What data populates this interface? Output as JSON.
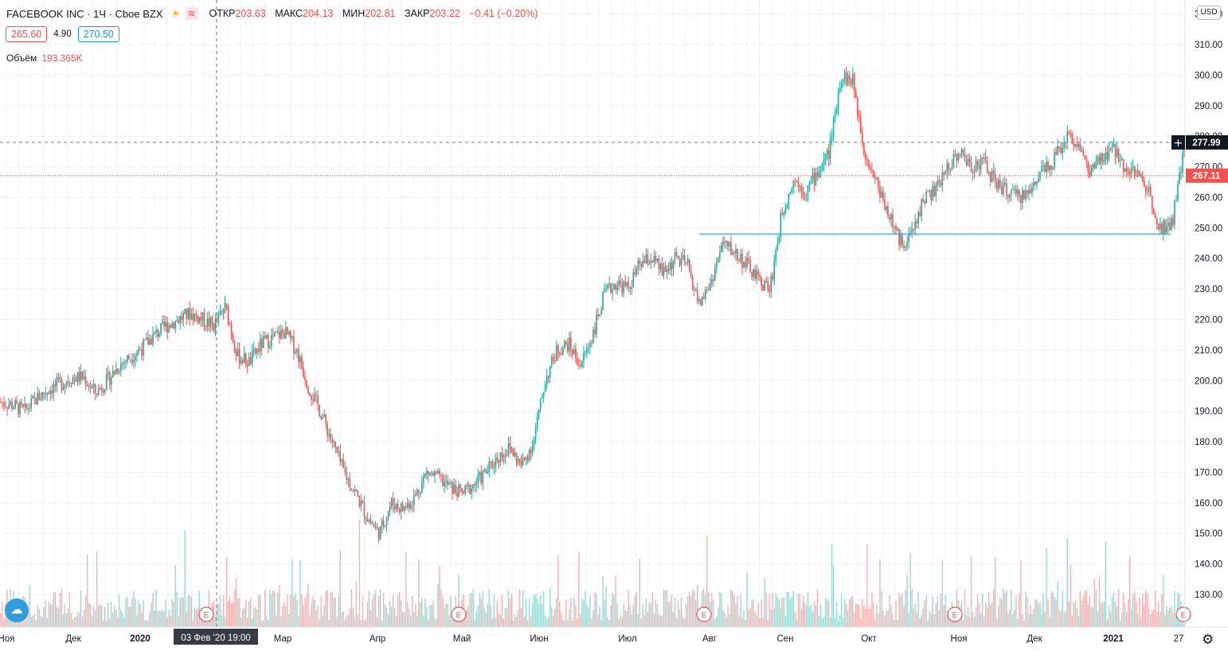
{
  "header": {
    "symbol": "FACEBOOK INC · 1Ч · Cboe BZX",
    "icons": [
      "sun-icon",
      "waves-icon"
    ],
    "ohlc": [
      {
        "label": "ОТКР",
        "value": "203.63"
      },
      {
        "label": "МАКС",
        "value": "204.13"
      },
      {
        "label": "МИН",
        "value": "202.81"
      },
      {
        "label": "ЗАКР",
        "value": "203.22"
      },
      {
        "label": "",
        "value": "−0.41 (−0.20%)"
      }
    ],
    "bid": "265.60",
    "spread": "4.90",
    "ask": "270.50",
    "volume_label": "Объём",
    "volume_value": "193.365K",
    "currency": "USD"
  },
  "colors": {
    "up": "#26a69a",
    "down": "#ef5350",
    "crosshair_price_bg": "#131722",
    "last_price_bg": "#ef5350",
    "level_line": "#2196f3",
    "earnings_marker": "#ef5350"
  },
  "chart_data": {
    "type": "candlestick",
    "interval": "1 hour",
    "y_ticks": [
      "130.00",
      "140.00",
      "150.00",
      "160.00",
      "170.00",
      "180.00",
      "190.00",
      "200.00",
      "210.00",
      "220.00",
      "230.00",
      "240.00",
      "250.00",
      "260.00",
      "270.00",
      "280.00",
      "290.00",
      "300.00",
      "310.00",
      "320.00"
    ],
    "ylim": [
      124,
      322
    ],
    "x_labels": [
      "Ноя",
      "Дек",
      "2020",
      "03 Фев '20  19:00",
      "Мар",
      "Апр",
      "Май",
      "Июн",
      "Июл",
      "Авг",
      "Сен",
      "Окт",
      "Ноя",
      "Дек",
      "2021",
      "27"
    ],
    "close_trajectory": {
      "x": [
        0,
        1,
        2,
        3,
        4,
        5,
        6,
        7,
        8,
        9,
        10,
        11,
        12,
        13,
        14,
        15,
        16,
        17,
        18,
        19,
        20,
        21,
        22,
        23,
        24,
        25,
        26,
        27,
        28,
        29,
        30,
        31,
        32,
        33,
        34,
        35,
        36,
        37,
        38,
        39,
        40,
        41,
        42,
        43,
        44,
        45,
        46,
        47,
        48,
        49,
        50,
        51,
        52,
        53,
        54,
        55,
        56,
        57,
        58,
        59,
        60,
        61,
        62,
        63,
        64,
        65,
        66,
        67,
        68,
        69,
        70,
        71,
        72,
        73,
        74,
        75,
        76,
        77,
        78,
        79,
        80,
        81,
        82,
        83,
        84,
        85,
        86,
        87,
        88,
        89,
        90,
        91,
        92,
        93,
        94,
        95,
        96,
        97,
        98,
        99,
        100
      ],
      "y": [
        193,
        192,
        190,
        194,
        197,
        199,
        201,
        201,
        196,
        200,
        205,
        208,
        211,
        215,
        218,
        220,
        222,
        220,
        218,
        224,
        208,
        206,
        212,
        214,
        216,
        210,
        198,
        190,
        180,
        170,
        163,
        155,
        150,
        160,
        158,
        162,
        170,
        168,
        165,
        163,
        166,
        170,
        175,
        178,
        172,
        180,
        200,
        210,
        212,
        205,
        215,
        228,
        232,
        230,
        238,
        240,
        235,
        240,
        238,
        225,
        232,
        245,
        242,
        238,
        233,
        230,
        255,
        266,
        262,
        268,
        275,
        300,
        298,
        275,
        265,
        255,
        245,
        248,
        260,
        262,
        270,
        275,
        270,
        272,
        265,
        262,
        260,
        262,
        270,
        272,
        280,
        278,
        268,
        272,
        276,
        270,
        268,
        262,
        250,
        252,
        276
      ]
    },
    "crosshair_price": "277.99",
    "last_price": "267.11",
    "support_level": 248,
    "earnings_markers": [
      "E",
      "E",
      "E",
      "E",
      "E"
    ],
    "grid": true
  }
}
